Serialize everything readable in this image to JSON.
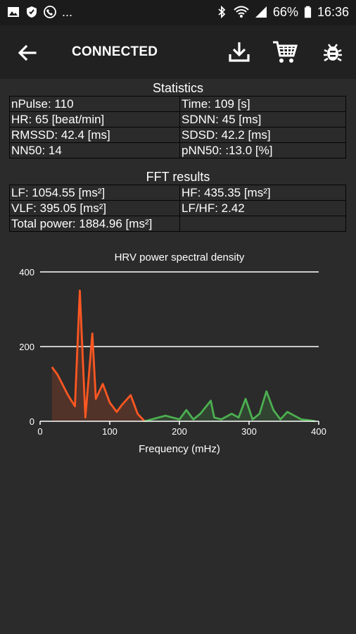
{
  "statusbar": {
    "left_icons": [
      "image-icon",
      "shield-icon",
      "call-icon"
    ],
    "overflow": "...",
    "battery": "66%",
    "time": "16:36"
  },
  "appbar": {
    "title": "CONNECTED",
    "actions": [
      "download-icon",
      "cart-icon",
      "bug-icon"
    ]
  },
  "statistics": {
    "title": "Statistics",
    "rows": [
      [
        "nPulse: 110",
        "Time: 109 [s]"
      ],
      [
        "HR: 65 [beat/min]",
        "SDNN: 45 [ms]"
      ],
      [
        "RMSSD: 42.4 [ms]",
        "SDSD: 42.2 [ms]"
      ],
      [
        "NN50: 14",
        "pNN50: :13.0 [%]"
      ]
    ]
  },
  "fft": {
    "title": "FFT results",
    "rows": [
      [
        "LF: 1054.55 [ms²]",
        "HF: 435.35 [ms²]"
      ],
      [
        "VLF: 395.05 [ms²]",
        "LF/HF: 2.42"
      ],
      [
        "Total power: 1884.96 [ms²]",
        ""
      ]
    ]
  },
  "chart_data": {
    "type": "area",
    "title": "HRV power spectral density",
    "xlabel": "Frequency (mHz)",
    "ylabel": "",
    "xlim": [
      0,
      400
    ],
    "ylim": [
      0,
      400
    ],
    "x_ticks": [
      0,
      100,
      200,
      300,
      400
    ],
    "y_ticks": [
      0,
      200,
      400
    ],
    "grid": true,
    "series": [
      {
        "color": "#ff5722",
        "x": [
          17,
          25,
          40,
          50,
          57,
          65,
          75,
          80,
          90,
          100,
          110,
          118,
          130,
          140,
          150
        ],
        "y": [
          145,
          125,
          70,
          40,
          350,
          10,
          235,
          60,
          100,
          50,
          25,
          45,
          70,
          20,
          0
        ]
      },
      {
        "color": "#4caf50",
        "x": [
          150,
          160,
          170,
          180,
          190,
          200,
          210,
          220,
          230,
          245,
          250,
          260,
          275,
          285,
          295,
          305,
          315,
          325,
          335,
          345,
          355,
          365,
          375,
          385,
          395
        ],
        "y": [
          0,
          5,
          10,
          15,
          10,
          5,
          30,
          5,
          20,
          55,
          10,
          5,
          20,
          10,
          60,
          5,
          20,
          80,
          30,
          5,
          25,
          15,
          5,
          3,
          0
        ]
      }
    ]
  },
  "colors": {
    "background": "#2b2b2b",
    "appbar": "#212121",
    "statusbar": "#1b1b1b",
    "lf": "#ff5722",
    "hf": "#4caf50"
  }
}
